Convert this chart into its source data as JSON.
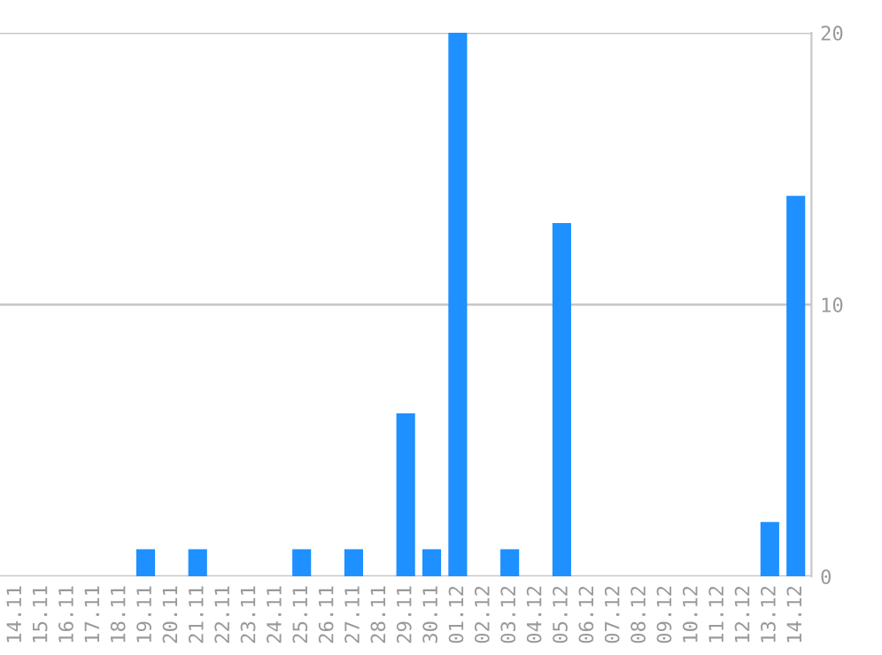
{
  "chart_data": {
    "type": "bar",
    "categories": [
      "14.11",
      "15.11",
      "16.11",
      "17.11",
      "18.11",
      "19.11",
      "20.11",
      "21.11",
      "22.11",
      "23.11",
      "24.11",
      "25.11",
      "26.11",
      "27.11",
      "28.11",
      "29.11",
      "30.11",
      "01.12",
      "02.12",
      "03.12",
      "04.12",
      "05.12",
      "06.12",
      "07.12",
      "08.12",
      "09.12",
      "10.12",
      "11.12",
      "12.12",
      "13.12",
      "14.12"
    ],
    "values": [
      0,
      0,
      0,
      0,
      0,
      1,
      0,
      1,
      0,
      0,
      0,
      1,
      0,
      1,
      0,
      6,
      1,
      20,
      0,
      1,
      0,
      13,
      0,
      0,
      0,
      0,
      0,
      0,
      0,
      2,
      14
    ],
    "color": "#1e90ff",
    "ylim": [
      0,
      20
    ],
    "yticks": [
      0,
      10,
      20
    ],
    "grid": "y"
  }
}
